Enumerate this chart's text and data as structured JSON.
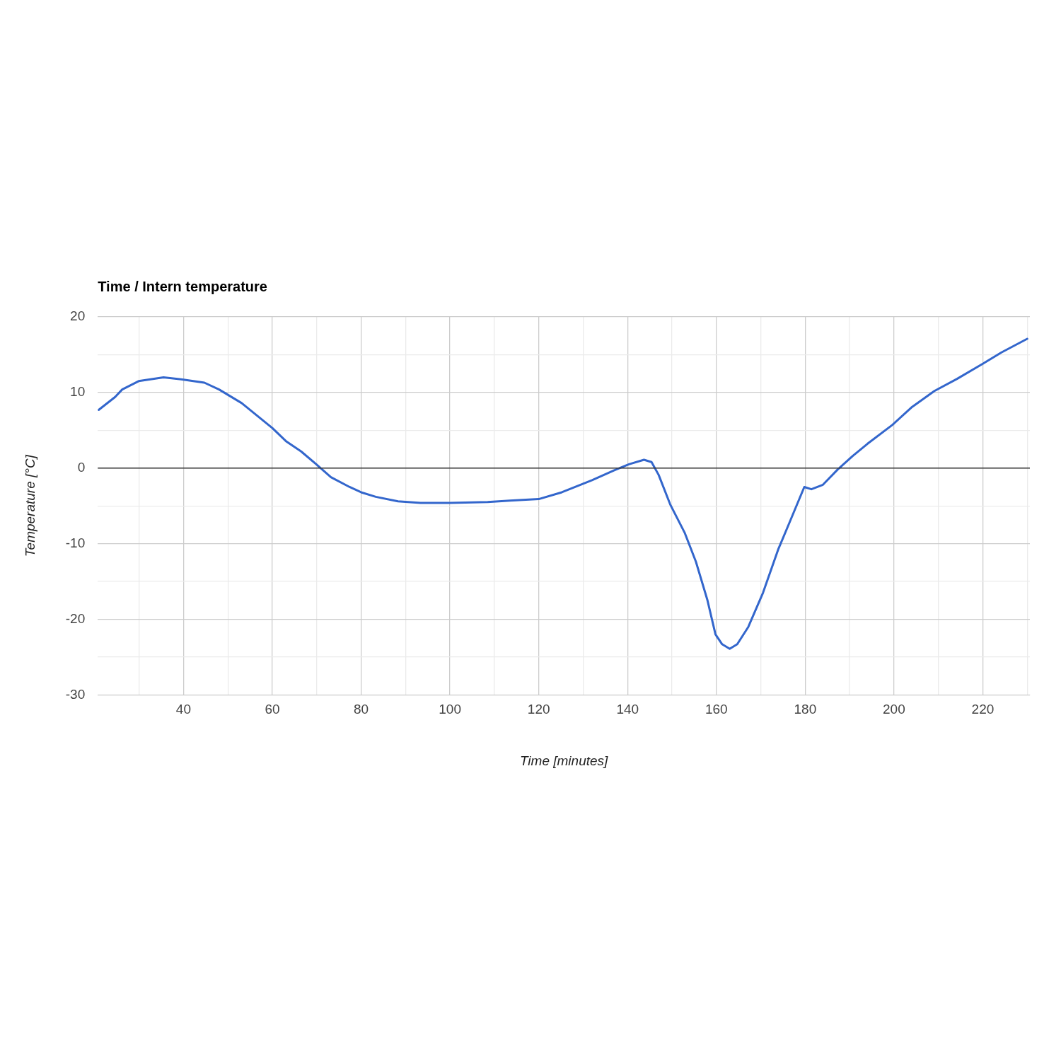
{
  "chart_data": {
    "type": "line",
    "title": "Time / Intern temperature",
    "xlabel": "Time [minutes]",
    "ylabel": "Temperature [°C]",
    "x": [
      20.9,
      24.6,
      26.2,
      29.9,
      35.5,
      40,
      44.7,
      48,
      53.1,
      60,
      63.2,
      66.5,
      69.9,
      73.2,
      77.4,
      80,
      83.3,
      88.3,
      93.4,
      100,
      108.5,
      113.5,
      120,
      125.2,
      132,
      137,
      140.3,
      143.7,
      145.4,
      147,
      149.6,
      152.9,
      155.4,
      158,
      159.8,
      161.3,
      163,
      164.7,
      167.2,
      170.5,
      173.9,
      176.4,
      179.8,
      181.4,
      184,
      187.3,
      190.7,
      194,
      199.6,
      204.1,
      209.1,
      214.2,
      220,
      224.2,
      230
    ],
    "series": [
      {
        "color": "#3366cc",
        "values": [
          7.7,
          9.4,
          10.4,
          11.5,
          12.0,
          11.7,
          11.3,
          10.4,
          8.6,
          5.3,
          3.5,
          2.2,
          0.5,
          -1.2,
          -2.5,
          -3.2,
          -3.8,
          -4.4,
          -4.6,
          -4.6,
          -4.5,
          -4.3,
          -4.1,
          -3.2,
          -1.6,
          -0.3,
          0.5,
          1.1,
          0.8,
          -0.9,
          -4.8,
          -8.6,
          -12.4,
          -17.5,
          -22.0,
          -23.3,
          -23.9,
          -23.3,
          -21.0,
          -16.5,
          -10.8,
          -7.3,
          -2.5,
          -2.8,
          -2.2,
          -0.2,
          1.6,
          3.2,
          5.7,
          8.1,
          10.2,
          11.8,
          13.8,
          15.3,
          17.1
        ]
      }
    ],
    "xlim": [
      20.7,
      230.6
    ],
    "xticks": [
      {
        "value": 30,
        "label": null
      },
      40,
      {
        "value": 50,
        "label": null
      },
      60,
      {
        "value": 70,
        "label": null
      },
      80,
      {
        "value": 90,
        "label": null
      },
      100,
      {
        "value": 110,
        "label": null
      },
      120,
      {
        "value": 130,
        "label": null
      },
      140,
      {
        "value": 150,
        "label": null
      },
      160,
      {
        "value": 170,
        "label": null
      },
      180,
      {
        "value": 190,
        "label": null
      },
      200,
      {
        "value": 210,
        "label": null
      },
      220,
      {
        "value": 230,
        "label": null
      }
    ],
    "ylim": [
      -30,
      20
    ],
    "yticks": [
      -30,
      {
        "value": -25,
        "label": null
      },
      -20,
      {
        "value": -15,
        "label": null
      },
      -10,
      {
        "value": -5,
        "label": null
      },
      0,
      {
        "value": 5,
        "label": null
      },
      10,
      {
        "value": 15,
        "label": null
      },
      20
    ],
    "ref_lines": [
      {
        "axis": "y",
        "value": 0,
        "color": "#333333"
      }
    ],
    "grid": true,
    "legend": false,
    "marker": "none",
    "line_style": "solid"
  }
}
